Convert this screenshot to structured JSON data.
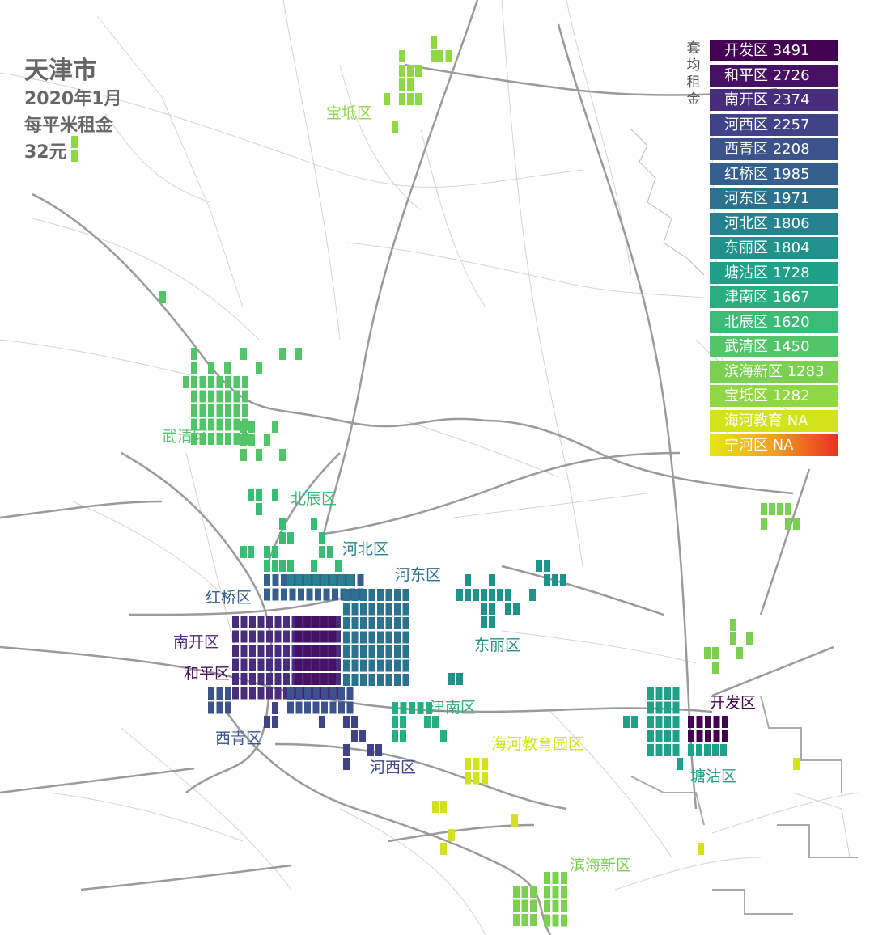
{
  "title": {
    "city": "天津市",
    "period": "2020年1月",
    "metric": "每平米租金",
    "value": "32元"
  },
  "legend": {
    "title": "套均租金",
    "items": [
      {
        "label": "开发区 3491",
        "color": "#440154"
      },
      {
        "label": "和平区 2726",
        "color": "#471063"
      },
      {
        "label": "南开区 2374",
        "color": "#472d7b"
      },
      {
        "label": "河西区 2257",
        "color": "#404387"
      },
      {
        "label": "西青区 2208",
        "color": "#3b528b"
      },
      {
        "label": "红桥区 1985",
        "color": "#355f8d"
      },
      {
        "label": "河东区 1971",
        "color": "#2c728e"
      },
      {
        "label": "河北区 1806",
        "color": "#26828e"
      },
      {
        "label": "东丽区 1804",
        "color": "#21918c"
      },
      {
        "label": "塘沽区 1728",
        "color": "#1fa088"
      },
      {
        "label": "津南区 1667",
        "color": "#28ae80"
      },
      {
        "label": "北辰区 1620",
        "color": "#3bbb75"
      },
      {
        "label": "武清区 1450",
        "color": "#52c569"
      },
      {
        "label": "滨海新区 1283",
        "color": "#7ad151"
      },
      {
        "label": "宝坻区 1282",
        "color": "#8fd744"
      },
      {
        "label": "海河教育 NA",
        "color": "#d2e21b"
      },
      {
        "label": "宁河区 NA",
        "color": "gradient"
      }
    ]
  },
  "districts": [
    {
      "name": "宝坻区",
      "color": "#8fd744"
    },
    {
      "name": "武清区",
      "color": "#52c569"
    },
    {
      "name": "北辰区",
      "color": "#3bbb75"
    },
    {
      "name": "河北区",
      "color": "#26828e"
    },
    {
      "name": "河东区",
      "color": "#2c728e"
    },
    {
      "name": "红桥区",
      "color": "#355f8d"
    },
    {
      "name": "南开区",
      "color": "#472d7b"
    },
    {
      "name": "和平区",
      "color": "#471063"
    },
    {
      "name": "东丽区",
      "color": "#21918c"
    },
    {
      "name": "津南区",
      "color": "#28ae80"
    },
    {
      "name": "西青区",
      "color": "#3b528b"
    },
    {
      "name": "河西区",
      "color": "#404387"
    },
    {
      "name": "海河教育园区",
      "color": "#d2e21b"
    },
    {
      "name": "开发区",
      "color": "#440154"
    },
    {
      "name": "塘沽区",
      "color": "#1fa088"
    },
    {
      "name": "滨海新区",
      "color": "#7ad151"
    }
  ],
  "colors": {
    "road": "#9a9a9a",
    "minor_road": "#d4d4d4",
    "title": "#666666",
    "ninghe_gradient": [
      "#e9e51a",
      "#f0a020",
      "#e83020"
    ]
  }
}
